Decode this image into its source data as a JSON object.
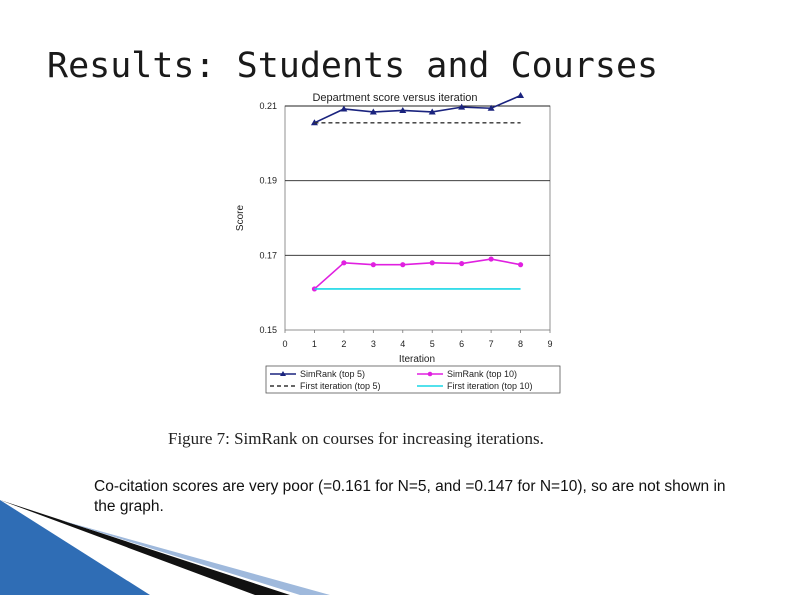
{
  "slide": {
    "title": "Results: Students and Courses",
    "figure_caption": "Figure 7: SimRank on courses for increasing iterations.",
    "body_text": "Co-citation scores are very poor (=0.161 for N=5, and =0.147 for N=10), so are not shown in the graph."
  },
  "colors": {
    "top5": "#1a237e",
    "top10": "#e020e0",
    "first_top5": "#333333",
    "first_top10": "#19d7e6",
    "deco_blue": "#2f6db5",
    "deco_dark": "#111111",
    "deco_light": "#9fb9dc"
  },
  "chart_data": {
    "type": "line",
    "title": "Department score versus iteration",
    "xlabel": "Iteration",
    "ylabel": "Score",
    "xlim": [
      0,
      9
    ],
    "ylim": [
      0.15,
      0.21
    ],
    "xticks": [
      "0",
      "1",
      "2",
      "3",
      "4",
      "5",
      "6",
      "7",
      "8",
      "9"
    ],
    "yticks": [
      "0.15",
      "0.17",
      "0.19",
      "0.21"
    ],
    "legend_position": "bottom",
    "series": [
      {
        "name": "SimRank (top 5)",
        "x": [
          1,
          2,
          3,
          4,
          5,
          6,
          7,
          8
        ],
        "y": [
          0.2055,
          0.2092,
          0.2084,
          0.2088,
          0.2084,
          0.2097,
          0.2094,
          0.2128
        ],
        "style": "line-triangle",
        "color_key": "top5"
      },
      {
        "name": "SimRank (top 10)",
        "x": [
          1,
          2,
          3,
          4,
          5,
          6,
          7,
          8
        ],
        "y": [
          0.161,
          0.168,
          0.1675,
          0.1675,
          0.168,
          0.1678,
          0.169,
          0.1675
        ],
        "style": "line-circle",
        "color_key": "top10"
      },
      {
        "name": "First iteration (top 5)",
        "x": [
          1,
          8
        ],
        "y": [
          0.2055,
          0.2055
        ],
        "style": "dashed",
        "color_key": "first_top5"
      },
      {
        "name": "First iteration (top 10)",
        "x": [
          1,
          8
        ],
        "y": [
          0.161,
          0.161
        ],
        "style": "solid",
        "color_key": "first_top10"
      }
    ]
  }
}
